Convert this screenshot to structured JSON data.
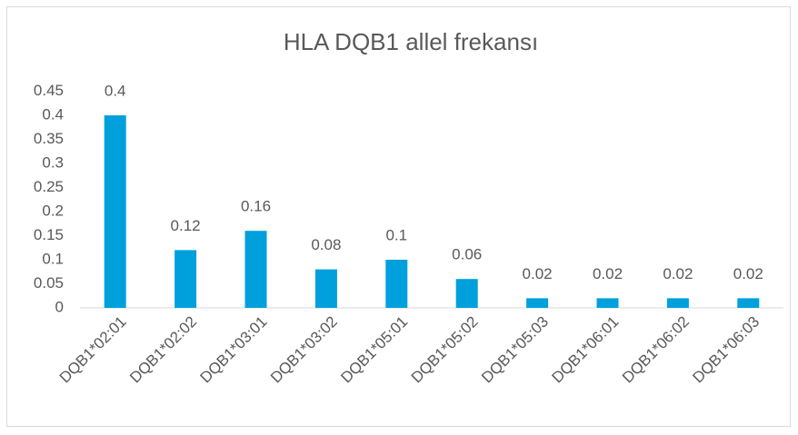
{
  "chart_data": {
    "type": "bar",
    "title": "HLA DQB1 allel frekansı",
    "categories": [
      "DQB1*02:01",
      "DQB1*02:02",
      "DQB1*03:01",
      "DQB1*03:02",
      "DQB1*05:01",
      "DQB1*05:02",
      "DQB1*05:03",
      "DQB1*06:01",
      "DQB1*06:02",
      "DQB1*06:03"
    ],
    "values": [
      0.4,
      0.12,
      0.16,
      0.08,
      0.1,
      0.06,
      0.02,
      0.02,
      0.02,
      0.02
    ],
    "color": "#00a0dc",
    "ylim": [
      0,
      0.45
    ],
    "yticks": [
      0,
      0.05,
      0.1,
      0.15,
      0.2,
      0.25,
      0.3,
      0.35,
      0.4,
      0.45
    ],
    "grid": false
  }
}
